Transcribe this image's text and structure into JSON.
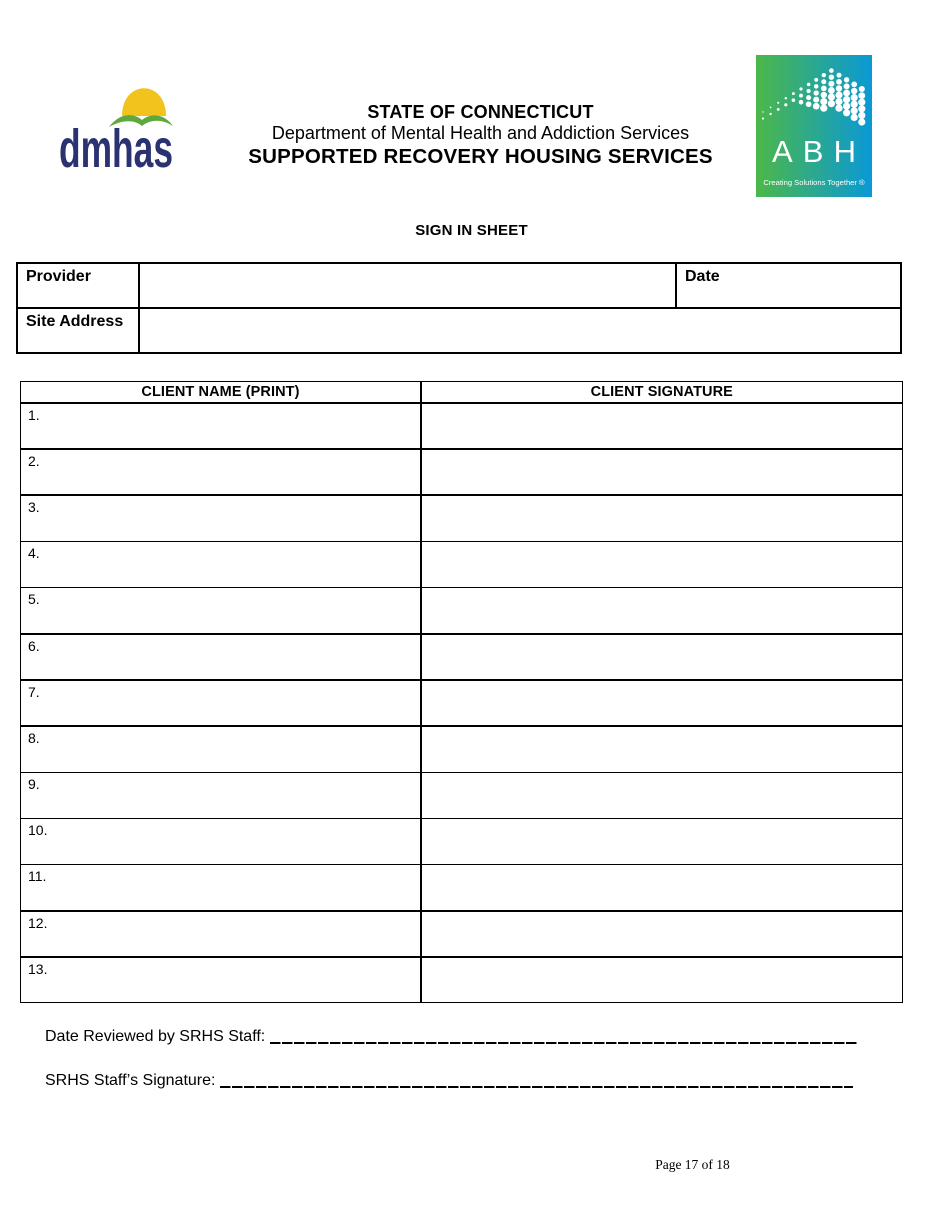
{
  "header": {
    "dmhas_logo": {
      "text": "dmhas",
      "sun_color": "#f2c31c",
      "arc_color": "#5ea83c",
      "text_color": "#2a3272"
    },
    "agency_line1": "STATE OF CONNECTICUT",
    "agency_line2": "Department of Mental Health and Addiction Services",
    "agency_line3": "SUPPORTED RECOVERY HOUSING SERVICES",
    "abh_logo": {
      "text": "ABH",
      "tagline": "Creating Solutions Together ®",
      "gradient_left": "#4cb749",
      "gradient_right": "#0a99d6"
    }
  },
  "form": {
    "title": "SIGN IN SHEET",
    "fields": {
      "provider_label": "Provider",
      "provider_value": "",
      "date_label": "Date",
      "date_value": "",
      "site_address_label": "Site Address",
      "site_address_value": ""
    }
  },
  "client_table": {
    "columns": [
      "CLIENT NAME (PRINT)",
      "CLIENT SIGNATURE"
    ],
    "rows": [
      {
        "number": "1.",
        "client_name": "",
        "client_signature": ""
      },
      {
        "number": "2.",
        "client_name": "",
        "client_signature": ""
      },
      {
        "number": "3.",
        "client_name": "",
        "client_signature": ""
      },
      {
        "number": "4.",
        "client_name": "",
        "client_signature": ""
      },
      {
        "number": "5.",
        "client_name": "",
        "client_signature": ""
      },
      {
        "number": "6.",
        "client_name": "",
        "client_signature": ""
      },
      {
        "number": "7.",
        "client_name": "",
        "client_signature": ""
      },
      {
        "number": "8.",
        "client_name": "",
        "client_signature": ""
      },
      {
        "number": "9.",
        "client_name": "",
        "client_signature": ""
      },
      {
        "number": "10.",
        "client_name": "",
        "client_signature": ""
      },
      {
        "number": "11.",
        "client_name": "",
        "client_signature": ""
      },
      {
        "number": "12.",
        "client_name": "",
        "client_signature": ""
      },
      {
        "number": "13.",
        "client_name": "",
        "client_signature": ""
      }
    ]
  },
  "footer": {
    "date_reviewed_label": "Date Reviewed by SRHS Staff:",
    "staff_signature_label": "SRHS Staff’s Signature:",
    "page_label": "Page 17 of 18"
  }
}
